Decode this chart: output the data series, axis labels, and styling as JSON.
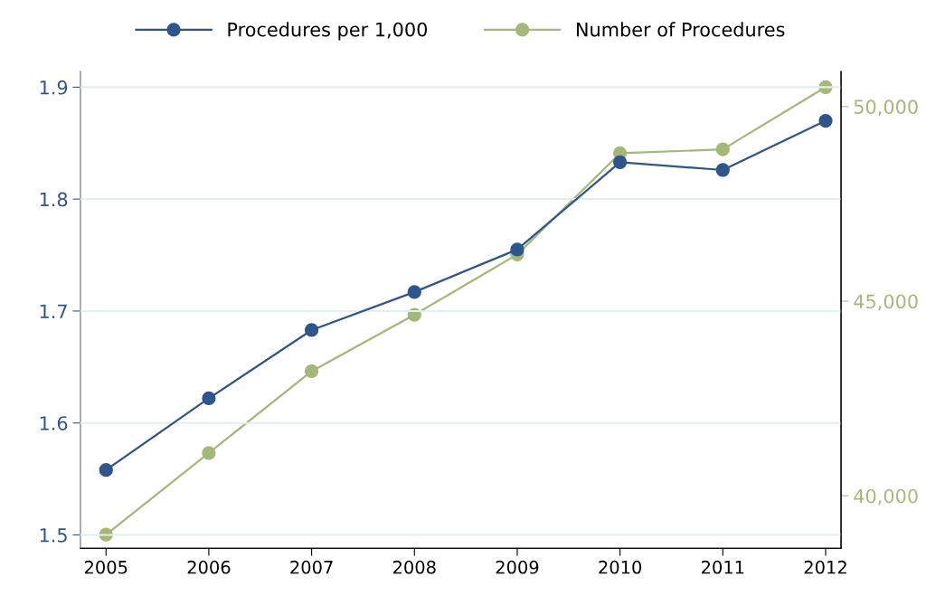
{
  "chart_data": {
    "type": "line",
    "categories": [
      "2005",
      "2006",
      "2007",
      "2008",
      "2009",
      "2010",
      "2011",
      "2012"
    ],
    "series": [
      {
        "name": "Procedures per 1,000",
        "color": "#2e568c",
        "values": [
          1.558,
          1.622,
          1.683,
          1.717,
          1.755,
          1.833,
          1.826,
          1.87
        ]
      },
      {
        "name": "Number of Procedures",
        "color": "#a4b878",
        "axis": "y2",
        "values": [
          39000,
          41100,
          43200,
          44650,
          46200,
          48800,
          48900,
          50500
        ]
      }
    ],
    "ylim": [
      1.488,
      1.914
    ],
    "yticks": [
      1.5,
      1.6,
      1.7,
      1.8,
      1.9
    ],
    "y2lim": [
      38650,
      50900
    ],
    "y2ticks": [
      {
        "value": 40000,
        "label": "40,000"
      },
      {
        "value": 45000,
        "label": "45,000"
      },
      {
        "value": 50000,
        "label": "50,000"
      }
    ],
    "grid": "y",
    "legend": "top",
    "marker": "circle",
    "line_style": "solid"
  }
}
